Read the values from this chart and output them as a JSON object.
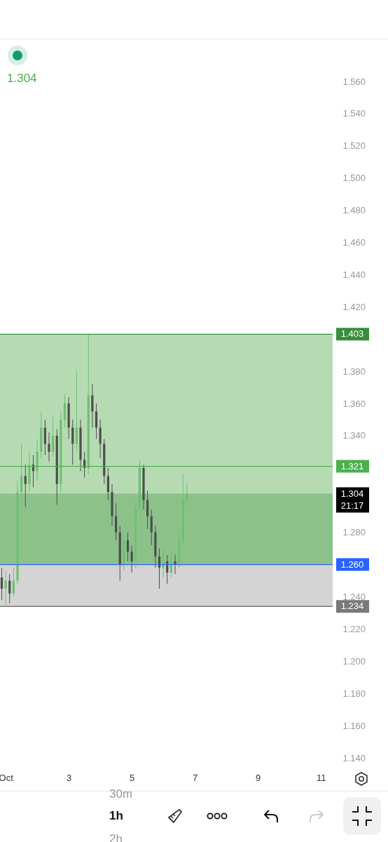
{
  "chart_data": {
    "type": "candlestick",
    "x": [
      "--09-30T21:00",
      "--10-01T00:00",
      "--10-01T03:00",
      "--10-01T06:00",
      "--10-01T09:00",
      "--10-01T12:00",
      "--10-01T15:00",
      "--10-01T18:00",
      "--10-01T21:00",
      "--10-02T00:00",
      "--10-02T03:00",
      "--10-02T06:00",
      "--10-02T09:00",
      "--10-02T12:00",
      "--10-02T15:00",
      "--10-02T18:00",
      "--10-02T21:00",
      "--10-03T00:00",
      "--10-03T03:00",
      "--10-03T06:00",
      "--10-03T09:00",
      "--10-03T12:00",
      "--10-03T15:00",
      "--10-03T18:00",
      "--10-03T21:00",
      "--10-04T00:00",
      "--10-04T03:00",
      "--10-04T06:00",
      "--10-04T09:00",
      "--10-04T12:00",
      "--10-04T15:00",
      "--10-04T18:00",
      "--10-04T21:00",
      "--10-05T00:00",
      "--10-05T03:00",
      "--10-05T06:00",
      "--10-05T09:00",
      "--10-05T12:00",
      "--10-05T15:00",
      "--10-05T18:00",
      "--10-05T21:00",
      "--10-06T00:00",
      "--10-06T03:00",
      "--10-06T06:00",
      "--10-06T09:00",
      "--10-06T12:00",
      "--10-06T15:00",
      "--10-06T18:00"
    ],
    "ohlc": [
      [
        1.252,
        1.258,
        1.238,
        1.245
      ],
      [
        1.245,
        1.256,
        1.235,
        1.25
      ],
      [
        1.25,
        1.254,
        1.236,
        1.242
      ],
      [
        1.242,
        1.258,
        1.24,
        1.25
      ],
      [
        1.25,
        1.312,
        1.248,
        1.305
      ],
      [
        1.305,
        1.335,
        1.3,
        1.315
      ],
      [
        1.315,
        1.322,
        1.296,
        1.31
      ],
      [
        1.31,
        1.33,
        1.305,
        1.322
      ],
      [
        1.322,
        1.328,
        1.308,
        1.318
      ],
      [
        1.318,
        1.338,
        1.312,
        1.33
      ],
      [
        1.33,
        1.355,
        1.326,
        1.345
      ],
      [
        1.345,
        1.35,
        1.328,
        1.335
      ],
      [
        1.335,
        1.342,
        1.324,
        1.33
      ],
      [
        1.33,
        1.352,
        1.327,
        1.34
      ],
      [
        1.34,
        1.344,
        1.297,
        1.31
      ],
      [
        1.31,
        1.355,
        1.305,
        1.35
      ],
      [
        1.35,
        1.366,
        1.345,
        1.36
      ],
      [
        1.36,
        1.364,
        1.338,
        1.345
      ],
      [
        1.345,
        1.35,
        1.322,
        1.335
      ],
      [
        1.335,
        1.38,
        1.33,
        1.345
      ],
      [
        1.345,
        1.35,
        1.318,
        1.325
      ],
      [
        1.325,
        1.33,
        1.314,
        1.32
      ],
      [
        1.32,
        1.403,
        1.316,
        1.365
      ],
      [
        1.365,
        1.372,
        1.345,
        1.355
      ],
      [
        1.355,
        1.36,
        1.338,
        1.345
      ],
      [
        1.345,
        1.35,
        1.326,
        1.335
      ],
      [
        1.335,
        1.338,
        1.31,
        1.315
      ],
      [
        1.315,
        1.32,
        1.3,
        1.305
      ],
      [
        1.305,
        1.31,
        1.284,
        1.29
      ],
      [
        1.29,
        1.298,
        1.275,
        1.28
      ],
      [
        1.28,
        1.284,
        1.25,
        1.26
      ],
      [
        1.26,
        1.28,
        1.256,
        1.275
      ],
      [
        1.275,
        1.28,
        1.262,
        1.268
      ],
      [
        1.268,
        1.272,
        1.255,
        1.262
      ],
      [
        1.262,
        1.3,
        1.258,
        1.295
      ],
      [
        1.295,
        1.325,
        1.29,
        1.32
      ],
      [
        1.32,
        1.322,
        1.294,
        1.3
      ],
      [
        1.3,
        1.306,
        1.282,
        1.29
      ],
      [
        1.29,
        1.294,
        1.272,
        1.28
      ],
      [
        1.28,
        1.284,
        1.258,
        1.265
      ],
      [
        1.265,
        1.27,
        1.245,
        1.258
      ],
      [
        1.258,
        1.27,
        1.252,
        1.262
      ],
      [
        1.262,
        1.266,
        1.248,
        1.255
      ],
      [
        1.255,
        1.268,
        1.252,
        1.262
      ],
      [
        1.262,
        1.266,
        1.254,
        1.26
      ],
      [
        1.26,
        1.282,
        1.258,
        1.275
      ],
      [
        1.275,
        1.316,
        1.272,
        1.3
      ],
      [
        1.3,
        1.31,
        1.296,
        1.304
      ]
    ],
    "colors": [
      "#4d4d4d",
      "#6fbf73",
      "#4d4d4d",
      "#6fbf73",
      "#6fbf73",
      "#6fbf73",
      "#4d4d4d",
      "#6fbf73",
      "#4d4d4d",
      "#6fbf73",
      "#6fbf73",
      "#4d4d4d",
      "#4d4d4d",
      "#6fbf73",
      "#4d4d4d",
      "#6fbf73",
      "#6fbf73",
      "#4d4d4d",
      "#4d4d4d",
      "#6fbf73",
      "#4d4d4d",
      "#4d4d4d",
      "#6fbf73",
      "#4d4d4d",
      "#4d4d4d",
      "#4d4d4d",
      "#4d4d4d",
      "#4d4d4d",
      "#4d4d4d",
      "#4d4d4d",
      "#4d4d4d",
      "#6fbf73",
      "#4d4d4d",
      "#4d4d4d",
      "#6fbf73",
      "#6fbf73",
      "#4d4d4d",
      "#4d4d4d",
      "#4d4d4d",
      "#4d4d4d",
      "#4d4d4d",
      "#6fbf73",
      "#4d4d4d",
      "#6fbf73",
      "#4d4d4d",
      "#6fbf73",
      "#6fbf73",
      "#6fbf73"
    ],
    "xlim": [
      "--09-30T19:40",
      "--10-11T09:00"
    ],
    "xticks": [
      {
        "value": "--10-01",
        "label": "Oct"
      },
      {
        "value": "--10-03",
        "label": "3"
      },
      {
        "value": "--10-05",
        "label": "5"
      },
      {
        "value": "--10-07",
        "label": "7"
      },
      {
        "value": "--10-09",
        "label": "9"
      },
      {
        "value": "--10-11",
        "label": "11"
      }
    ],
    "ylim": [
      1.14,
      1.56
    ],
    "yticks": [
      {
        "value": 1.14,
        "label": "1.140"
      },
      {
        "value": 1.16,
        "label": "1.160"
      },
      {
        "value": 1.18,
        "label": "1.180"
      },
      {
        "value": 1.2,
        "label": "1.200"
      },
      {
        "value": 1.22,
        "label": "1.220"
      },
      {
        "value": 1.24,
        "label": "1.240"
      },
      {
        "value": 1.28,
        "label": "1.280"
      },
      {
        "value": 1.34,
        "label": "1.340"
      },
      {
        "value": 1.36,
        "label": "1.360"
      },
      {
        "value": 1.38,
        "label": "1.380"
      },
      {
        "value": 1.42,
        "label": "1.420"
      },
      {
        "value": 1.44,
        "label": "1.440"
      },
      {
        "value": 1.46,
        "label": "1.460"
      },
      {
        "value": 1.48,
        "label": "1.480"
      },
      {
        "value": 1.5,
        "label": "1.500"
      },
      {
        "value": 1.52,
        "label": "1.520"
      },
      {
        "value": 1.54,
        "label": "1.540"
      },
      {
        "value": 1.56,
        "label": "1.560"
      }
    ],
    "bands": [
      {
        "axis": "y",
        "from": 1.26,
        "to": 1.403,
        "color": "#b6dbb3"
      },
      {
        "axis": "y",
        "from": 1.26,
        "to": 1.304,
        "color": "#8cc28a"
      },
      {
        "axis": "y",
        "from": 1.234,
        "to": 1.26,
        "color": "#d4d4d4"
      }
    ],
    "ref_lines": [
      {
        "axis": "y",
        "value": 1.403,
        "label": "1.403",
        "color": "#388e3c"
      },
      {
        "axis": "y",
        "value": 1.321,
        "label": "1.321",
        "color": "#4caf50"
      },
      {
        "axis": "y",
        "value": 1.26,
        "label": "1.260",
        "color": "#2962ff"
      },
      {
        "axis": "y",
        "value": 1.234,
        "label": "1.234",
        "color": "#787878"
      }
    ],
    "annotations": [
      "1.304",
      "21:17",
      "1.304",
      "30m",
      "1h",
      "2h"
    ],
    "grid": false
  }
}
